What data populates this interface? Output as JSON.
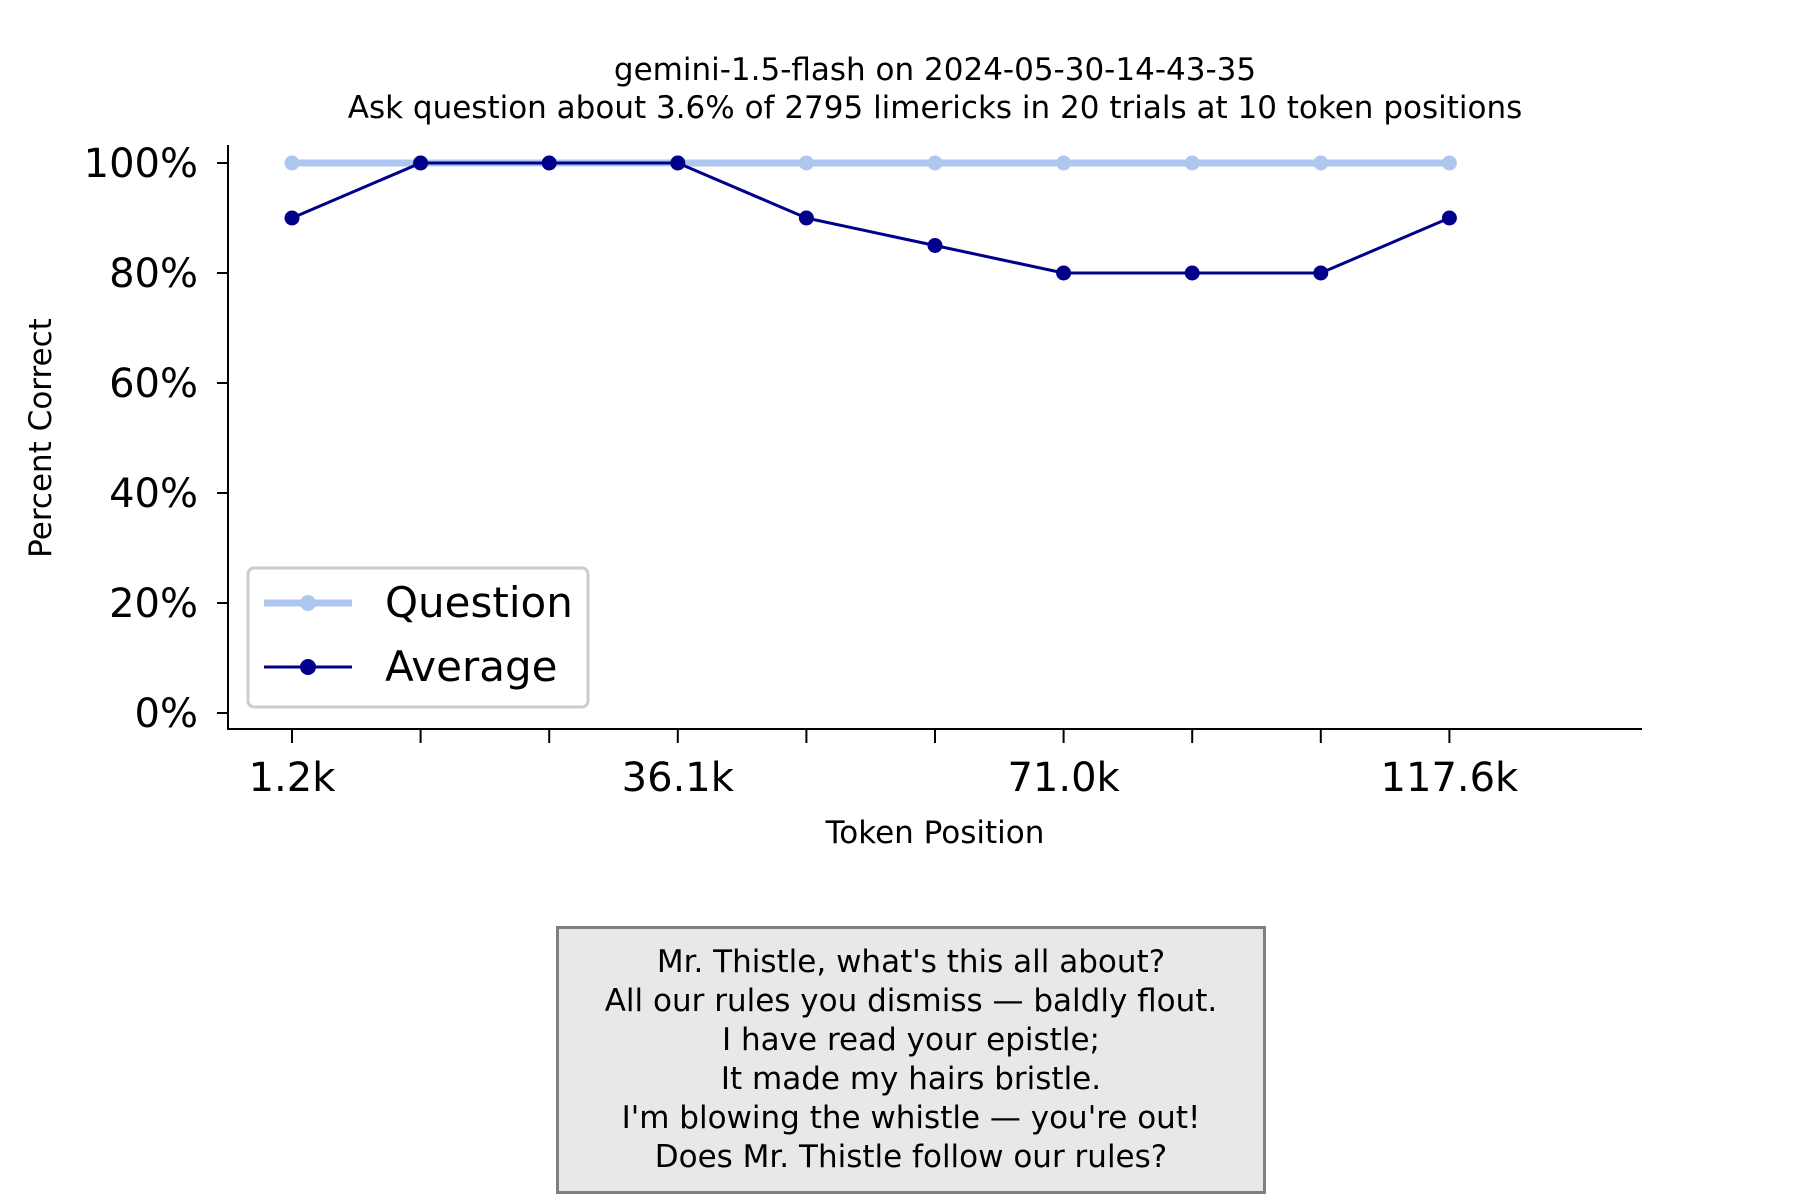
{
  "chart_data": {
    "type": "line",
    "title": "gemini-1.5-flash on 2024-05-30-14-43-35",
    "subtitle": "Ask question about 3.6% of 2795 limericks in 20 trials at 10 token positions",
    "xlabel": "Token Position",
    "ylabel": "Percent Correct",
    "x_tick_labels": [
      "1.2k",
      "",
      "",
      "36.1k",
      "",
      "",
      "71.0k",
      "",
      "",
      "117.6k"
    ],
    "y_ticks": [
      0,
      20,
      40,
      60,
      80,
      100
    ],
    "y_tick_labels": [
      "0%",
      "20%",
      "40%",
      "60%",
      "80%",
      "100%"
    ],
    "ylim": [
      -2.5,
      103
    ],
    "grid": false,
    "legend_position": "lower-left",
    "series": [
      {
        "name": "Question",
        "color": "#aec7f0",
        "values": [
          100,
          100,
          100,
          100,
          100,
          100,
          100,
          100,
          100,
          100
        ]
      },
      {
        "name": "Average",
        "color": "#00008b",
        "values": [
          90,
          100,
          100,
          100,
          90,
          85,
          80,
          80,
          80,
          90
        ]
      }
    ]
  },
  "limerick": {
    "lines": [
      "Mr. Thistle, what's this all about?",
      "All our rules you dismiss — baldly flout.",
      "I have read your epistle;",
      "It made my hairs bristle.",
      "I'm blowing the whistle — you're out!",
      "Does Mr. Thistle follow our rules?"
    ]
  }
}
